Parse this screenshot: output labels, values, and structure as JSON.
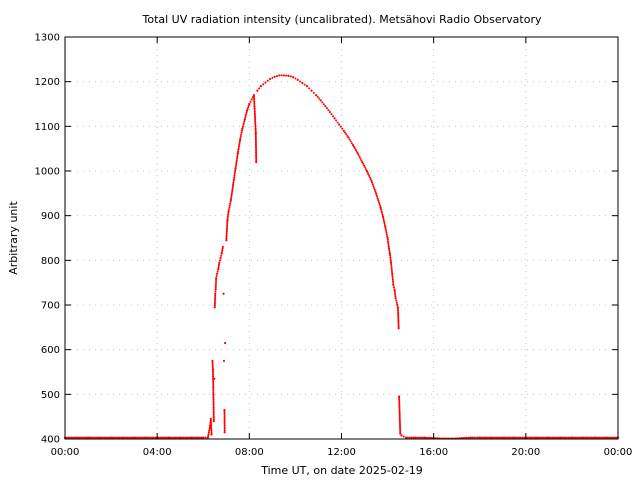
{
  "chart_data": {
    "type": "scatter",
    "title": "Total UV radiation intensity (uncalibrated). Metsähovi Radio Observatory",
    "xlabel": "Time UT, on date 2025-02-19",
    "ylabel": "Arbitrary unit",
    "x_unit": "hours UT",
    "xlim": [
      0,
      24
    ],
    "ylim": [
      400,
      1300
    ],
    "x_ticks": [
      {
        "value": 0,
        "label": "00:00"
      },
      {
        "value": 4,
        "label": "04:00"
      },
      {
        "value": 8,
        "label": "08:00"
      },
      {
        "value": 12,
        "label": "12:00"
      },
      {
        "value": 16,
        "label": "16:00"
      },
      {
        "value": 20,
        "label": "20:00"
      },
      {
        "value": 24,
        "label": "00:00"
      }
    ],
    "y_ticks": [
      {
        "value": 400,
        "label": "400"
      },
      {
        "value": 500,
        "label": "500"
      },
      {
        "value": 600,
        "label": "600"
      },
      {
        "value": 700,
        "label": "700"
      },
      {
        "value": 800,
        "label": "800"
      },
      {
        "value": 900,
        "label": "900"
      },
      {
        "value": 1000,
        "label": "1000"
      },
      {
        "value": 1100,
        "label": "1100"
      },
      {
        "value": 1200,
        "label": "1200"
      },
      {
        "value": 1300,
        "label": "1300"
      }
    ],
    "grid": true,
    "series_color": "#ff0000",
    "points": [
      [
        0.0,
        403
      ],
      [
        0.5,
        403
      ],
      [
        1.0,
        403
      ],
      [
        1.5,
        403
      ],
      [
        2.0,
        403
      ],
      [
        2.5,
        403
      ],
      [
        3.0,
        403
      ],
      [
        3.5,
        403
      ],
      [
        4.0,
        403
      ],
      [
        4.5,
        403
      ],
      [
        5.0,
        403
      ],
      [
        5.5,
        403
      ],
      [
        6.0,
        403
      ],
      [
        6.2,
        403
      ],
      [
        6.3,
        430
      ],
      [
        6.33,
        445
      ],
      [
        6.36,
        410
      ],
      [
        6.4,
        575
      ],
      [
        6.42,
        555
      ],
      [
        6.44,
        500
      ],
      [
        6.46,
        440
      ],
      [
        6.48,
        535
      ],
      [
        6.5,
        695
      ],
      [
        6.52,
        725
      ],
      [
        6.54,
        735
      ],
      [
        6.56,
        760
      ],
      [
        6.6,
        770
      ],
      [
        6.65,
        780
      ],
      [
        6.7,
        795
      ],
      [
        6.75,
        805
      ],
      [
        6.8,
        815
      ],
      [
        6.85,
        830
      ],
      [
        6.88,
        725
      ],
      [
        6.9,
        575
      ],
      [
        6.92,
        465
      ],
      [
        6.93,
        415
      ],
      [
        6.95,
        615
      ],
      [
        7.0,
        845
      ],
      [
        7.05,
        890
      ],
      [
        7.1,
        910
      ],
      [
        7.2,
        935
      ],
      [
        7.3,
        970
      ],
      [
        7.4,
        1005
      ],
      [
        7.5,
        1040
      ],
      [
        7.6,
        1070
      ],
      [
        7.7,
        1095
      ],
      [
        7.8,
        1115
      ],
      [
        7.9,
        1135
      ],
      [
        8.0,
        1150
      ],
      [
        8.1,
        1160
      ],
      [
        8.2,
        1170
      ],
      [
        8.28,
        1085
      ],
      [
        8.3,
        1020
      ],
      [
        8.35,
        1180
      ],
      [
        8.5,
        1190
      ],
      [
        8.7,
        1198
      ],
      [
        8.9,
        1206
      ],
      [
        9.1,
        1211
      ],
      [
        9.3,
        1214
      ],
      [
        9.5,
        1214
      ],
      [
        9.7,
        1213
      ],
      [
        9.9,
        1210
      ],
      [
        10.1,
        1204
      ],
      [
        10.3,
        1197
      ],
      [
        10.5,
        1190
      ],
      [
        10.7,
        1180
      ],
      [
        10.9,
        1170
      ],
      [
        11.1,
        1158
      ],
      [
        11.3,
        1145
      ],
      [
        11.5,
        1132
      ],
      [
        11.7,
        1118
      ],
      [
        11.9,
        1104
      ],
      [
        12.1,
        1090
      ],
      [
        12.3,
        1075
      ],
      [
        12.5,
        1058
      ],
      [
        12.7,
        1040
      ],
      [
        12.9,
        1020
      ],
      [
        13.1,
        1000
      ],
      [
        13.3,
        978
      ],
      [
        13.5,
        950
      ],
      [
        13.7,
        918
      ],
      [
        13.8,
        898
      ],
      [
        13.9,
        875
      ],
      [
        14.0,
        850
      ],
      [
        14.05,
        830
      ],
      [
        14.1,
        815
      ],
      [
        14.15,
        795
      ],
      [
        14.2,
        770
      ],
      [
        14.25,
        745
      ],
      [
        14.3,
        735
      ],
      [
        14.35,
        715
      ],
      [
        14.4,
        705
      ],
      [
        14.42,
        700
      ],
      [
        14.45,
        695
      ],
      [
        14.48,
        648
      ],
      [
        14.5,
        495
      ],
      [
        14.55,
        412
      ],
      [
        14.6,
        408
      ],
      [
        14.8,
        403
      ],
      [
        15.2,
        403
      ],
      [
        15.6,
        403
      ],
      [
        16.0,
        402
      ],
      [
        16.4,
        401
      ],
      [
        16.8,
        401
      ],
      [
        17.2,
        402
      ],
      [
        17.6,
        403
      ],
      [
        18.0,
        403
      ],
      [
        18.5,
        403
      ],
      [
        19.0,
        403
      ],
      [
        19.5,
        403
      ],
      [
        20.0,
        403
      ],
      [
        20.5,
        403
      ],
      [
        21.0,
        403
      ],
      [
        21.5,
        403
      ],
      [
        22.0,
        403
      ],
      [
        22.5,
        403
      ],
      [
        23.0,
        403
      ],
      [
        23.5,
        403
      ],
      [
        24.0,
        403
      ]
    ]
  }
}
